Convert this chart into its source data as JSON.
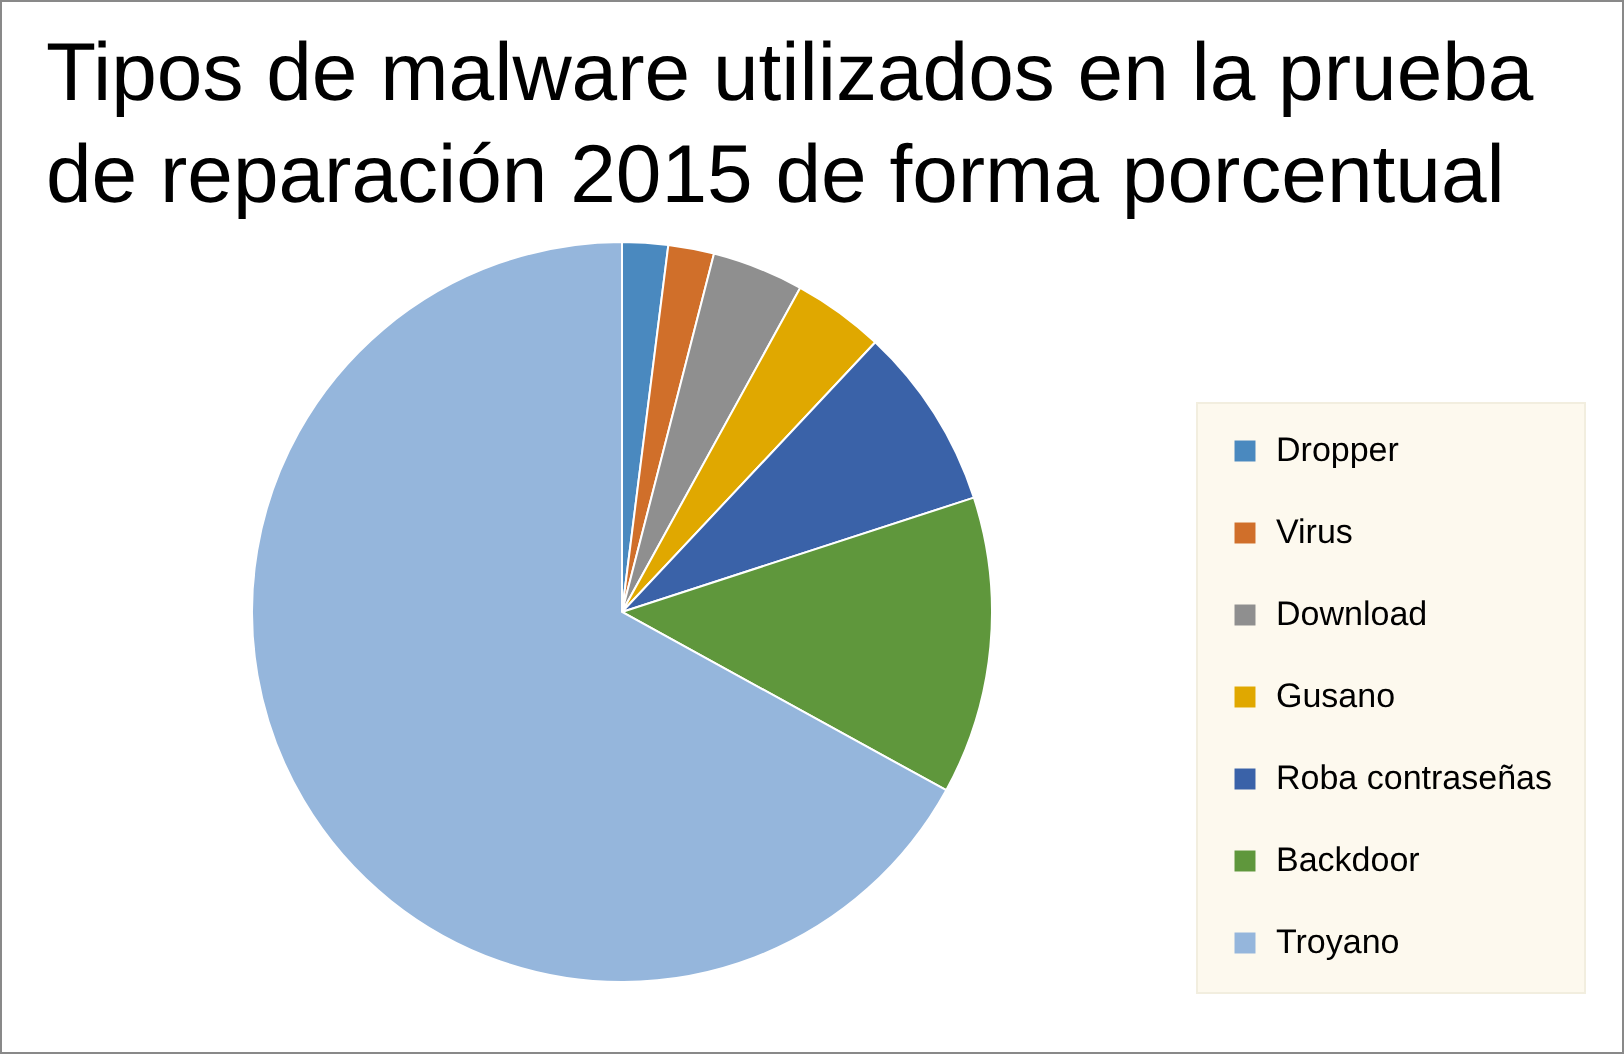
{
  "chart_data": {
    "type": "pie",
    "title": "Tipos de malware utilizados en la prueba de reparación 2015 de forma porcentual",
    "categories": [
      "Dropper",
      "Virus",
      "Download",
      "Gusano",
      "Roba contraseñas",
      "Backdoor",
      "Troyano"
    ],
    "values": [
      2,
      2,
      4,
      4,
      8,
      13,
      67
    ],
    "colors": [
      "#4a89bf",
      "#d06f2a",
      "#8f8f8f",
      "#e0a800",
      "#3a62a8",
      "#5f973c",
      "#95b6dc"
    ],
    "legend": "right"
  }
}
